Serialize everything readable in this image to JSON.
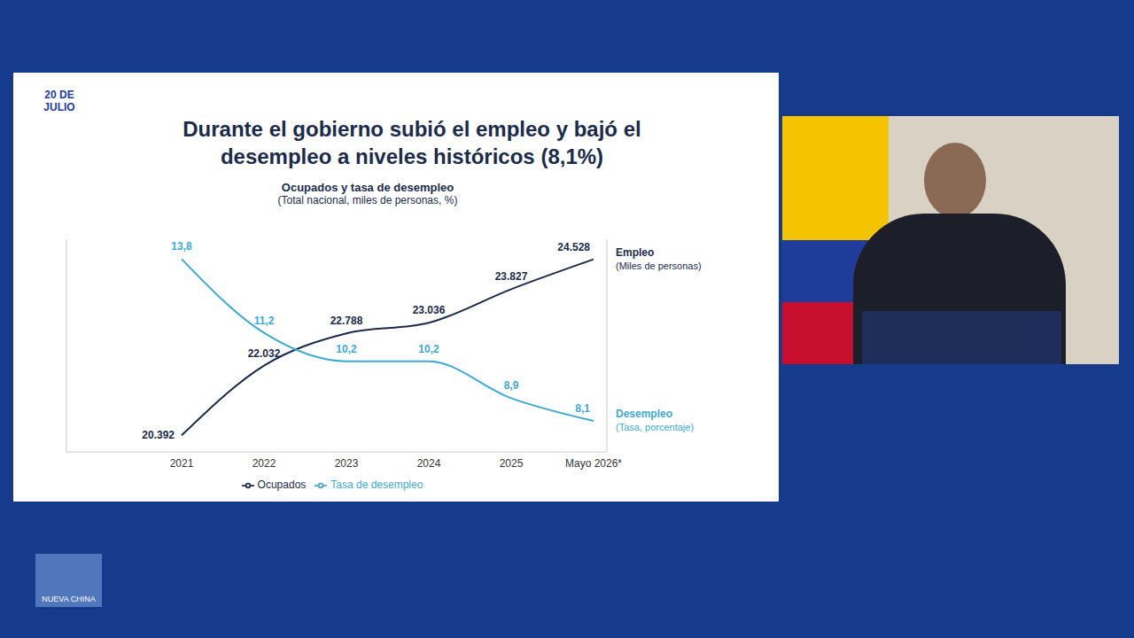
{
  "screen": {
    "logo": "20 DE JULIO",
    "watermark": "NUEVA CHINA"
  },
  "chart_data": {
    "type": "line",
    "title": "Durante el gobierno subió el empleo y bajó el desempleo a niveles históricos (8,1%)",
    "subtitle": "Ocupados y tasa de desempleo",
    "caption": "(Total nacional, miles de personas, %)",
    "categories": [
      "2021",
      "2022",
      "2023",
      "2024",
      "2025",
      "Mayo 2026*"
    ],
    "series": [
      {
        "name": "Ocupados",
        "color": "#1c2b4a",
        "values": [
          20392,
          22032,
          22788,
          23036,
          23827,
          24528
        ],
        "value_labels": [
          "20.392",
          "22.032",
          "22.788",
          "23.036",
          "23.827",
          "24.528"
        ],
        "end_label": "Empleo",
        "end_note": "(Miles de personas)"
      },
      {
        "name": "Tasa de desempleo",
        "color": "#3fa9d0",
        "axis": "y2",
        "values": [
          13.8,
          11.2,
          10.2,
          10.2,
          8.9,
          8.1
        ],
        "value_labels": [
          "13,8",
          "11,2",
          "10,2",
          "10,2",
          "8,9",
          "8,1"
        ],
        "end_label": "Desempleo",
        "end_note": "(Tasa, porcentaje)"
      }
    ],
    "ylim": [
      20000,
      25000
    ],
    "y2lim": [
      7,
      14.5
    ],
    "tick_labels": "x",
    "data_labels": true,
    "legend": "bottom",
    "marker": "none",
    "grid": false
  }
}
